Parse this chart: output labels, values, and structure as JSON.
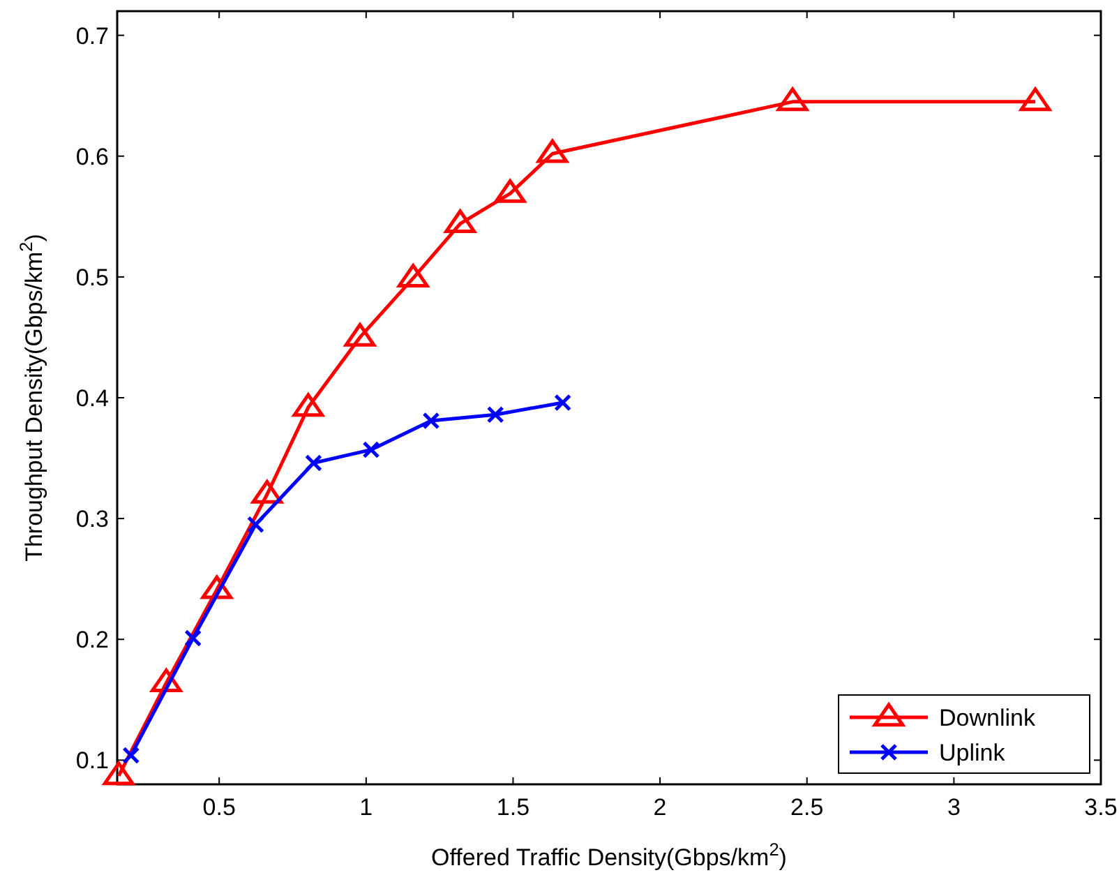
{
  "chart_data": {
    "type": "line",
    "xlabel": "Offered Traffic Density(Gbps/km$^{2}$)",
    "ylabel": "Throughput Density(Gbps/km$^{2}$)",
    "xlim": [
      0.153,
      3.5
    ],
    "xticks": [
      0.5,
      1,
      1.5,
      2,
      2.5,
      3,
      3.5
    ],
    "ylim": [
      0.08,
      0.72
    ],
    "yticks": [
      0.1,
      0.2,
      0.3,
      0.4,
      0.5,
      0.6,
      0.7
    ],
    "grid": false,
    "legend": "bottom right",
    "line_style": "solid",
    "series": [
      {
        "name": "Downlink",
        "color": "#ff0000",
        "marker": "triangle",
        "x": [
          0.158,
          0.32,
          0.492,
          0.663,
          0.803,
          0.979,
          1.16,
          1.32,
          1.49,
          1.634,
          2.451,
          3.277
        ],
        "values": [
          0.087,
          0.164,
          0.241,
          0.32,
          0.392,
          0.45,
          0.499,
          0.544,
          0.569,
          0.602,
          0.645,
          0.645
        ]
      },
      {
        "name": "Uplink",
        "color": "#0000ff",
        "marker": "cross",
        "x": [
          0.2,
          0.411,
          0.624,
          0.821,
          1.017,
          1.221,
          1.44,
          1.669
        ],
        "values": [
          0.104,
          0.201,
          0.295,
          0.346,
          0.357,
          0.381,
          0.386,
          0.396
        ]
      }
    ]
  }
}
